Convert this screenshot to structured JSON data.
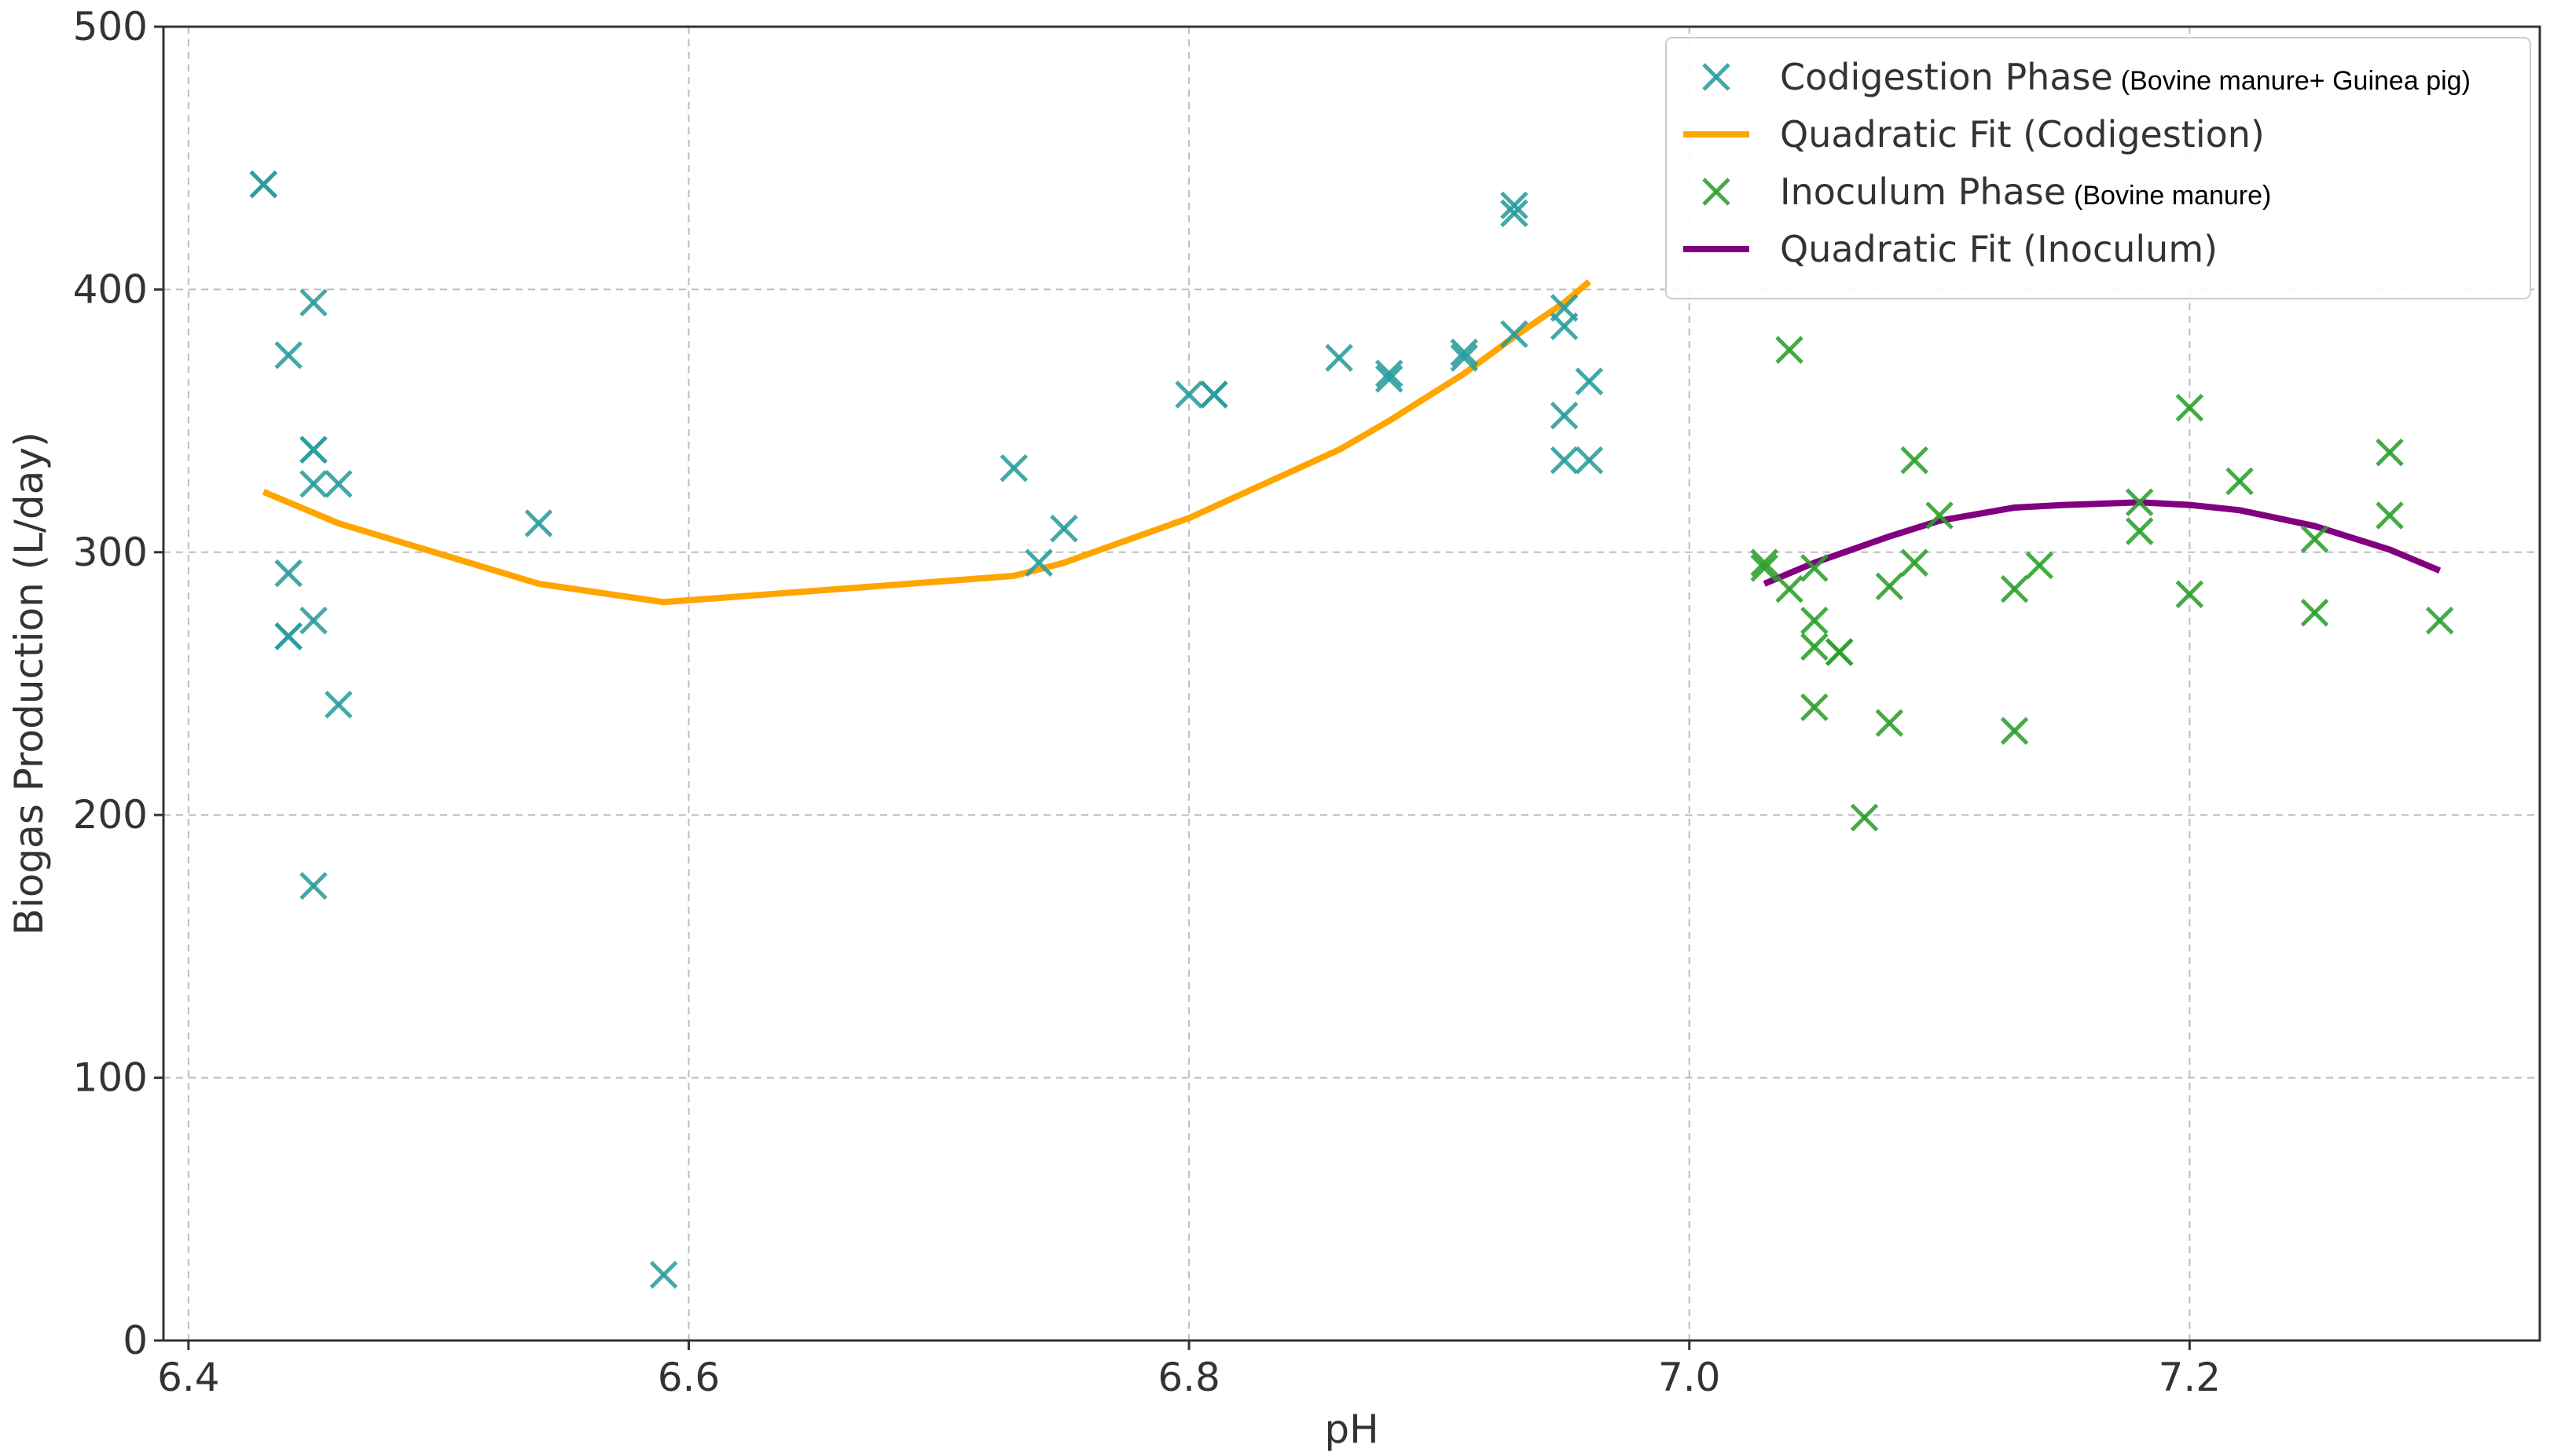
{
  "chart_data": {
    "type": "scatter",
    "xlabel": "pH",
    "ylabel": "Biogas Production (L/day)",
    "xlim": [
      6.39,
      7.34
    ],
    "ylim": [
      0,
      500
    ],
    "x_ticks": [
      6.4,
      6.6,
      6.8,
      7.0,
      7.2
    ],
    "x_tick_labels": [
      "6.4",
      "6.6",
      "6.8",
      "7.0",
      "7.2"
    ],
    "y_ticks": [
      0,
      100,
      200,
      300,
      400,
      500
    ],
    "y_tick_labels": [
      "0",
      "100",
      "200",
      "300",
      "400",
      "500"
    ],
    "grid": true,
    "legend_position": "top-right",
    "colors": {
      "codigestion": "#2a9d9d",
      "codigestion_fit": "#ffa500",
      "inoculum": "#2ca02c",
      "inoculum_fit": "#800080"
    },
    "series": [
      {
        "name": "Codigestion Phase",
        "subtitle": "(Bovine manure+ Guinea pig)",
        "kind": "scatter",
        "color_key": "codigestion",
        "points": [
          [
            6.43,
            440
          ],
          [
            6.43,
            440
          ],
          [
            6.44,
            375
          ],
          [
            6.44,
            292
          ],
          [
            6.44,
            268
          ],
          [
            6.44,
            268
          ],
          [
            6.45,
            395
          ],
          [
            6.45,
            339
          ],
          [
            6.45,
            339
          ],
          [
            6.45,
            326
          ],
          [
            6.45,
            274
          ],
          [
            6.45,
            173
          ],
          [
            6.46,
            326
          ],
          [
            6.46,
            242
          ],
          [
            6.54,
            311
          ],
          [
            6.59,
            25
          ],
          [
            6.73,
            332
          ],
          [
            6.74,
            296
          ],
          [
            6.75,
            309
          ],
          [
            6.8,
            360
          ],
          [
            6.81,
            360
          ],
          [
            6.81,
            360
          ],
          [
            6.86,
            374
          ],
          [
            6.88,
            368
          ],
          [
            6.88,
            366
          ],
          [
            6.91,
            376
          ],
          [
            6.91,
            374
          ],
          [
            6.93,
            432
          ],
          [
            6.93,
            429
          ],
          [
            6.93,
            383
          ],
          [
            6.95,
            393
          ],
          [
            6.95,
            386
          ],
          [
            6.95,
            352
          ],
          [
            6.95,
            335
          ],
          [
            6.96,
            365
          ],
          [
            6.96,
            335
          ]
        ]
      },
      {
        "name": "Quadratic Fit (Codigestion)",
        "kind": "line",
        "color_key": "codigestion_fit",
        "points": [
          [
            6.43,
            323
          ],
          [
            6.46,
            311
          ],
          [
            6.54,
            288
          ],
          [
            6.59,
            281
          ],
          [
            6.73,
            291
          ],
          [
            6.75,
            296
          ],
          [
            6.8,
            313
          ],
          [
            6.86,
            339
          ],
          [
            6.88,
            350
          ],
          [
            6.91,
            368
          ],
          [
            6.93,
            382
          ],
          [
            6.95,
            395
          ],
          [
            6.96,
            403
          ]
        ]
      },
      {
        "name": "Inoculum Phase",
        "subtitle": "(Bovine manure)",
        "kind": "scatter",
        "color_key": "inoculum",
        "points": [
          [
            7.03,
            296
          ],
          [
            7.03,
            294
          ],
          [
            7.04,
            377
          ],
          [
            7.04,
            286
          ],
          [
            7.05,
            294
          ],
          [
            7.05,
            274
          ],
          [
            7.05,
            264
          ],
          [
            7.05,
            241
          ],
          [
            7.06,
            262
          ],
          [
            7.06,
            262
          ],
          [
            7.07,
            199
          ],
          [
            7.08,
            287
          ],
          [
            7.08,
            235
          ],
          [
            7.09,
            335
          ],
          [
            7.09,
            296
          ],
          [
            7.1,
            314
          ],
          [
            7.13,
            286
          ],
          [
            7.13,
            232
          ],
          [
            7.14,
            295
          ],
          [
            7.18,
            319
          ],
          [
            7.18,
            308
          ],
          [
            7.2,
            355
          ],
          [
            7.2,
            284
          ],
          [
            7.22,
            327
          ],
          [
            7.25,
            305
          ],
          [
            7.25,
            277
          ],
          [
            7.28,
            338
          ],
          [
            7.28,
            314
          ],
          [
            7.3,
            274
          ]
        ]
      },
      {
        "name": "Quadratic Fit (Inoculum)",
        "kind": "line",
        "color_key": "inoculum_fit",
        "points": [
          [
            7.03,
            288
          ],
          [
            7.05,
            296
          ],
          [
            7.08,
            306
          ],
          [
            7.1,
            312
          ],
          [
            7.13,
            317
          ],
          [
            7.15,
            318
          ],
          [
            7.18,
            319
          ],
          [
            7.2,
            318
          ],
          [
            7.22,
            316
          ],
          [
            7.25,
            310
          ],
          [
            7.28,
            301
          ],
          [
            7.3,
            293
          ]
        ]
      }
    ]
  }
}
